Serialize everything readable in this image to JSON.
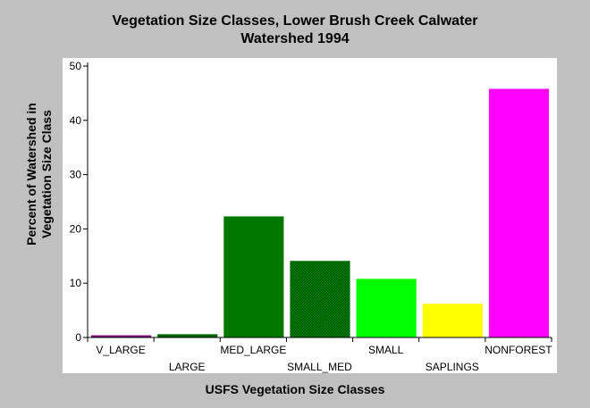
{
  "chart_data": {
    "type": "bar",
    "title_lines": [
      "Vegetation Size Classes, Lower Brush Creek Calwater",
      "Watershed 1994"
    ],
    "xlabel": "USFS Vegetation Size Classes",
    "ylabel_lines": [
      "Percent of Watershed in",
      "Vegetation Size Class"
    ],
    "ylim": [
      0,
      50
    ],
    "yticks": [
      0,
      10,
      20,
      30,
      40,
      50
    ],
    "categories": [
      "V_LARGE",
      "LARGE",
      "MED_LARGE",
      "SMALL_MED",
      "SMALL",
      "SAPLINGS",
      "NONFOREST"
    ],
    "values": [
      0.4,
      0.6,
      22.3,
      14.1,
      10.8,
      6.2,
      45.8
    ],
    "colors": [
      "#800080",
      "#006400",
      "#007800",
      "#006f00",
      "#00ff00",
      "#ffff00",
      "#ff00ff"
    ],
    "grid": false
  }
}
